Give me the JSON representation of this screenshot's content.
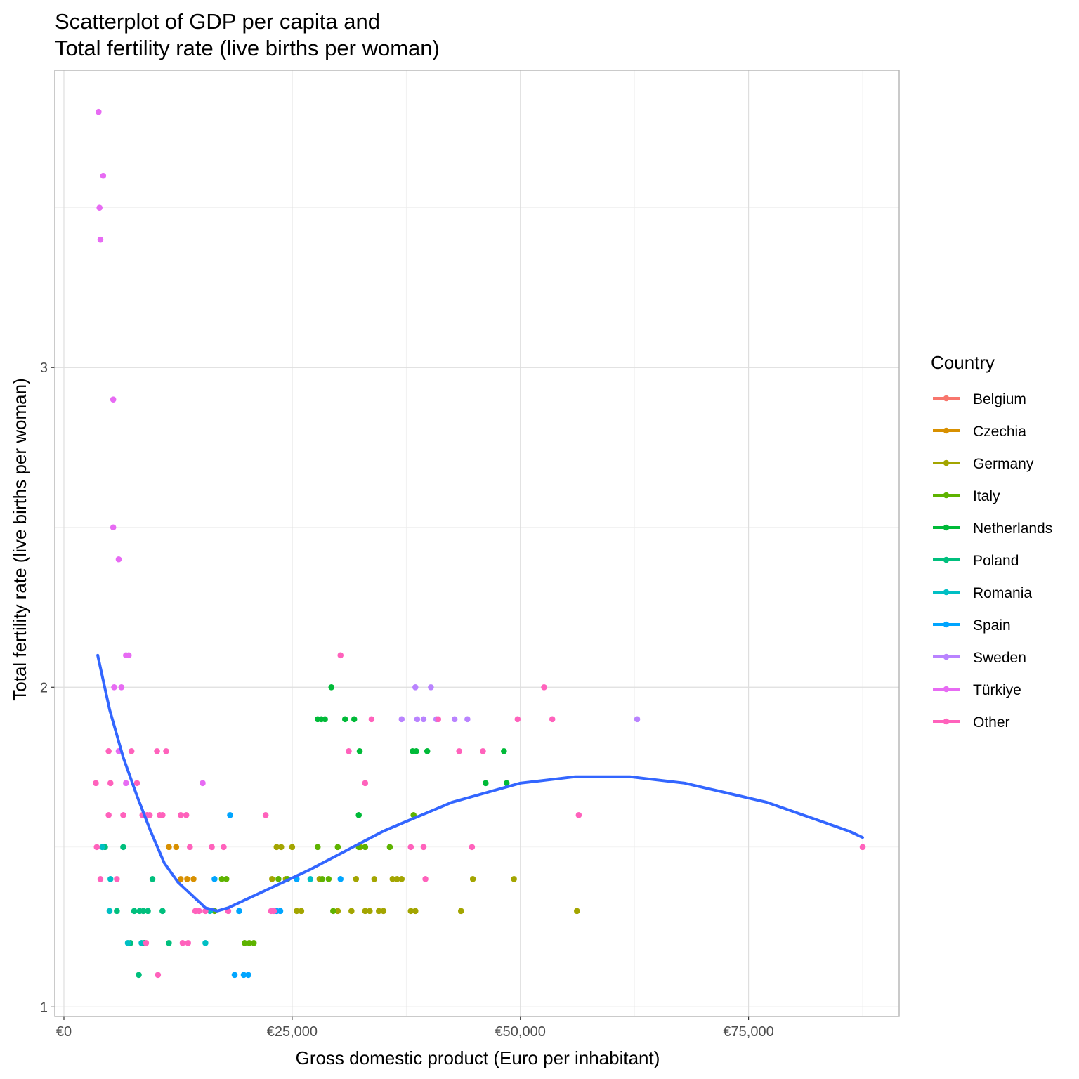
{
  "chart_data": {
    "type": "scatter",
    "title_line1": "Scatterplot of GDP per capita and",
    "title_line2": "Total fertility rate (live births per woman)",
    "xlabel": "Gross domestic product (Euro per inhabitant)",
    "ylabel": "Total fertility rate (live births per woman)",
    "xlim": [
      -1000,
      91500
    ],
    "ylim": [
      0.97,
      3.93
    ],
    "x_ticks": [
      {
        "value": 0,
        "label": "€0"
      },
      {
        "value": 25000,
        "label": "€25,000"
      },
      {
        "value": 50000,
        "label": "€50,000"
      },
      {
        "value": 75000,
        "label": "€75,000"
      }
    ],
    "y_ticks": [
      {
        "value": 1,
        "label": "1"
      },
      {
        "value": 2,
        "label": "2"
      },
      {
        "value": 3,
        "label": "3"
      }
    ],
    "grid": true,
    "legend": {
      "title": "Country",
      "placement": "right"
    },
    "series": [
      {
        "name": "Belgium",
        "color": "#F8766D",
        "points": []
      },
      {
        "name": "Czechia",
        "color": "#D89000",
        "points": [
          [
            11500,
            1.5
          ],
          [
            12300,
            1.5
          ],
          [
            12800,
            1.4
          ],
          [
            13500,
            1.4
          ],
          [
            14200,
            1.4
          ]
        ]
      },
      {
        "name": "Germany",
        "color": "#A3A500",
        "points": [
          [
            22800,
            1.4
          ],
          [
            23300,
            1.5
          ],
          [
            23800,
            1.5
          ],
          [
            24300,
            1.4
          ],
          [
            25000,
            1.5
          ],
          [
            25500,
            1.3
          ],
          [
            26000,
            1.3
          ],
          [
            28000,
            1.4
          ],
          [
            30000,
            1.3
          ],
          [
            31500,
            1.3
          ],
          [
            32000,
            1.4
          ],
          [
            32500,
            1.5
          ],
          [
            33000,
            1.3
          ],
          [
            33500,
            1.3
          ],
          [
            34000,
            1.4
          ],
          [
            34500,
            1.3
          ],
          [
            35000,
            1.3
          ],
          [
            36000,
            1.4
          ],
          [
            36500,
            1.4
          ],
          [
            37000,
            1.4
          ],
          [
            38000,
            1.3
          ],
          [
            38500,
            1.3
          ],
          [
            43500,
            1.3
          ],
          [
            44800,
            1.4
          ],
          [
            49300,
            1.4
          ],
          [
            56200,
            1.3
          ]
        ]
      },
      {
        "name": "Italy",
        "color": "#5EB300",
        "points": [
          [
            16500,
            1.3
          ],
          [
            17300,
            1.4
          ],
          [
            17800,
            1.4
          ],
          [
            19800,
            1.2
          ],
          [
            20300,
            1.2
          ],
          [
            20800,
            1.2
          ],
          [
            23500,
            1.4
          ],
          [
            24500,
            1.4
          ],
          [
            27800,
            1.5
          ],
          [
            28300,
            1.4
          ],
          [
            29000,
            1.4
          ],
          [
            29500,
            1.3
          ],
          [
            30000,
            1.5
          ],
          [
            32300,
            1.5
          ],
          [
            33000,
            1.5
          ],
          [
            35700,
            1.5
          ],
          [
            38300,
            1.6
          ]
        ]
      },
      {
        "name": "Netherlands",
        "color": "#00BA38",
        "points": [
          [
            27800,
            1.9
          ],
          [
            28200,
            1.9
          ],
          [
            28600,
            1.9
          ],
          [
            29300,
            2.0
          ],
          [
            30800,
            1.9
          ],
          [
            31800,
            1.9
          ],
          [
            32400,
            1.8
          ],
          [
            32300,
            1.6
          ],
          [
            38200,
            1.8
          ],
          [
            38600,
            1.8
          ],
          [
            39800,
            1.8
          ],
          [
            46200,
            1.7
          ],
          [
            48200,
            1.8
          ],
          [
            48500,
            1.7
          ]
        ]
      },
      {
        "name": "Poland",
        "color": "#00BF7D",
        "points": [
          [
            4500,
            1.5
          ],
          [
            5800,
            1.3
          ],
          [
            6500,
            1.5
          ],
          [
            7300,
            1.2
          ],
          [
            7700,
            1.3
          ],
          [
            8200,
            1.1
          ],
          [
            8300,
            1.3
          ],
          [
            8700,
            1.3
          ],
          [
            8800,
            1.2
          ],
          [
            9200,
            1.3
          ],
          [
            9700,
            1.4
          ],
          [
            10800,
            1.3
          ],
          [
            11500,
            1.2
          ]
        ]
      },
      {
        "name": "Romania",
        "color": "#00BFC4",
        "points": [
          [
            4200,
            1.5
          ],
          [
            5000,
            1.3
          ],
          [
            5100,
            1.4
          ],
          [
            7000,
            1.2
          ],
          [
            8500,
            1.2
          ],
          [
            15500,
            1.2
          ],
          [
            16000,
            1.3
          ],
          [
            27000,
            1.4
          ]
        ]
      },
      {
        "name": "Spain",
        "color": "#00A5FF",
        "points": [
          [
            16500,
            1.4
          ],
          [
            18200,
            1.6
          ],
          [
            18700,
            1.1
          ],
          [
            19200,
            1.3
          ],
          [
            19700,
            1.1
          ],
          [
            20200,
            1.1
          ],
          [
            23300,
            1.3
          ],
          [
            23700,
            1.3
          ],
          [
            25500,
            1.4
          ],
          [
            30300,
            1.4
          ]
        ]
      },
      {
        "name": "Sweden",
        "color": "#B983FF",
        "points": [
          [
            37000,
            1.9
          ],
          [
            38500,
            2.0
          ],
          [
            38700,
            1.9
          ],
          [
            39400,
            1.9
          ],
          [
            40200,
            2.0
          ],
          [
            40800,
            1.9
          ],
          [
            42800,
            1.9
          ],
          [
            44200,
            1.9
          ],
          [
            62800,
            1.9
          ]
        ]
      },
      {
        "name": "Türkiye",
        "color": "#E76BF3",
        "points": [
          [
            3800,
            3.8
          ],
          [
            4300,
            3.6
          ],
          [
            3900,
            3.5
          ],
          [
            4000,
            3.4
          ],
          [
            5400,
            2.9
          ],
          [
            5400,
            2.5
          ],
          [
            6000,
            2.4
          ],
          [
            6800,
            2.1
          ],
          [
            7100,
            2.1
          ],
          [
            5500,
            2.0
          ],
          [
            6300,
            2.0
          ],
          [
            6000,
            1.8
          ],
          [
            6800,
            1.7
          ],
          [
            15200,
            1.7
          ]
        ]
      },
      {
        "name": "Other",
        "color": "#FF62BC",
        "points": [
          [
            3500,
            1.7
          ],
          [
            3600,
            1.5
          ],
          [
            4000,
            1.4
          ],
          [
            4900,
            1.8
          ],
          [
            4900,
            1.6
          ],
          [
            5100,
            1.7
          ],
          [
            5800,
            1.4
          ],
          [
            6500,
            1.6
          ],
          [
            7400,
            1.8
          ],
          [
            8000,
            1.7
          ],
          [
            8600,
            1.6
          ],
          [
            9100,
            1.6
          ],
          [
            9400,
            1.6
          ],
          [
            10200,
            1.8
          ],
          [
            10500,
            1.6
          ],
          [
            10800,
            1.6
          ],
          [
            11200,
            1.8
          ],
          [
            12800,
            1.6
          ],
          [
            13000,
            1.2
          ],
          [
            13400,
            1.6
          ],
          [
            13600,
            1.2
          ],
          [
            13800,
            1.5
          ],
          [
            14400,
            1.3
          ],
          [
            14800,
            1.3
          ],
          [
            15500,
            1.3
          ],
          [
            16200,
            1.5
          ],
          [
            17500,
            1.5
          ],
          [
            18000,
            1.3
          ],
          [
            10300,
            1.1
          ],
          [
            9000,
            1.2
          ],
          [
            22100,
            1.6
          ],
          [
            22700,
            1.3
          ],
          [
            23000,
            1.3
          ],
          [
            30300,
            2.1
          ],
          [
            31200,
            1.8
          ],
          [
            33000,
            1.7
          ],
          [
            33700,
            1.9
          ],
          [
            38000,
            1.5
          ],
          [
            39400,
            1.5
          ],
          [
            39600,
            1.4
          ],
          [
            41000,
            1.9
          ],
          [
            43300,
            1.8
          ],
          [
            44700,
            1.5
          ],
          [
            45900,
            1.8
          ],
          [
            49700,
            1.9
          ],
          [
            52600,
            2.0
          ],
          [
            53500,
            1.9
          ],
          [
            56400,
            1.6
          ],
          [
            87500,
            1.5
          ]
        ]
      }
    ],
    "smooth_line": {
      "color": "#3366FF",
      "points": [
        [
          3700,
          2.1
        ],
        [
          5000,
          1.93
        ],
        [
          6500,
          1.78
        ],
        [
          8000,
          1.66
        ],
        [
          9500,
          1.55
        ],
        [
          11000,
          1.45
        ],
        [
          12500,
          1.39
        ],
        [
          14000,
          1.35
        ],
        [
          15500,
          1.31
        ],
        [
          16800,
          1.3
        ],
        [
          18000,
          1.31
        ],
        [
          19500,
          1.33
        ],
        [
          21000,
          1.35
        ],
        [
          22500,
          1.37
        ],
        [
          24000,
          1.39
        ],
        [
          25500,
          1.41
        ],
        [
          27000,
          1.43
        ],
        [
          29000,
          1.46
        ],
        [
          31000,
          1.49
        ],
        [
          33000,
          1.52
        ],
        [
          35000,
          1.55
        ],
        [
          37500,
          1.58
        ],
        [
          40000,
          1.61
        ],
        [
          42500,
          1.64
        ],
        [
          45000,
          1.66
        ],
        [
          47500,
          1.68
        ],
        [
          50000,
          1.7
        ],
        [
          53000,
          1.71
        ],
        [
          56000,
          1.72
        ],
        [
          59000,
          1.72
        ],
        [
          62000,
          1.72
        ],
        [
          65000,
          1.71
        ],
        [
          68000,
          1.7
        ],
        [
          71000,
          1.68
        ],
        [
          74000,
          1.66
        ],
        [
          77000,
          1.64
        ],
        [
          80000,
          1.61
        ],
        [
          83000,
          1.58
        ],
        [
          86000,
          1.55
        ],
        [
          87500,
          1.53
        ]
      ]
    }
  }
}
